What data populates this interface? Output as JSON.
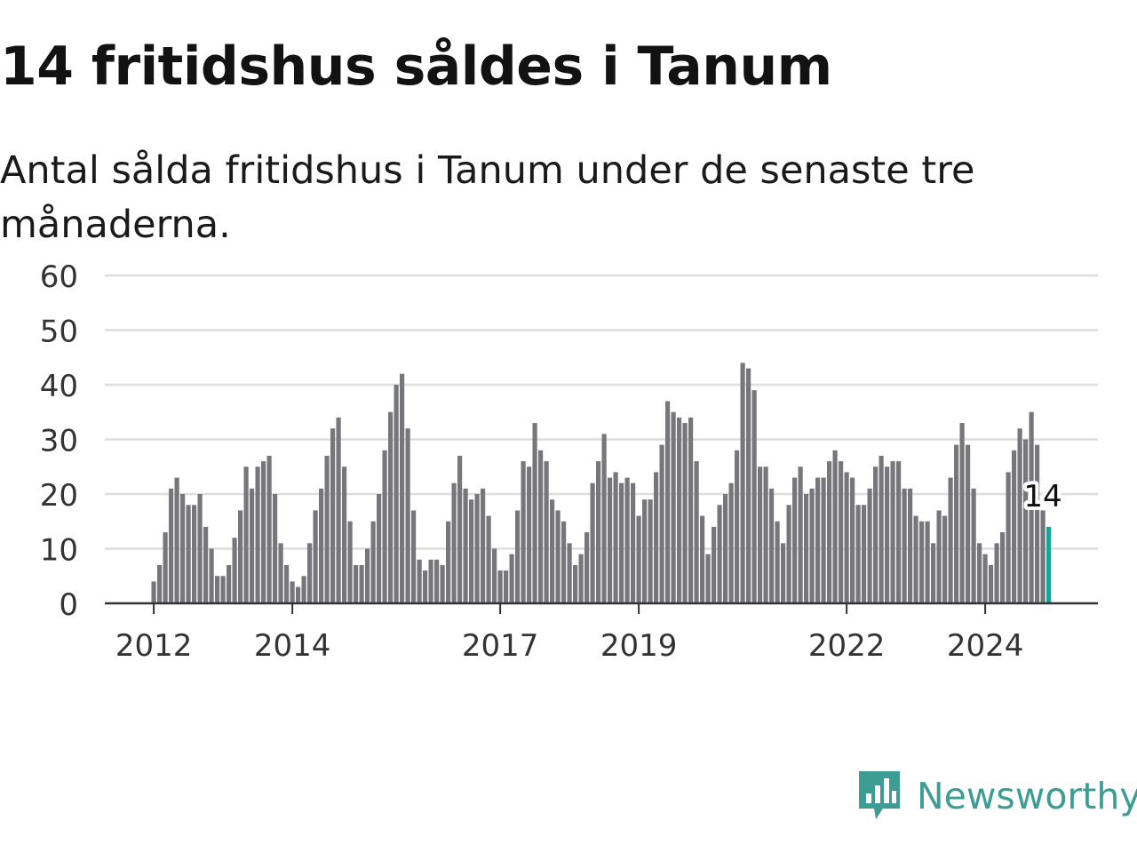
{
  "title": "14 fritidshus såldes i Tanum",
  "subtitle": "Antal sålda fritidshus i Tanum under de senaste tre månaderna.",
  "brand": {
    "name": "Newsworthy",
    "icon": "newsworthy-logo-icon",
    "color": "#3d9c93"
  },
  "colors": {
    "bar": "#76767b",
    "highlight": "#19a39a",
    "grid": "#dedede",
    "axis": "#333333"
  },
  "chart_data": {
    "type": "bar",
    "y_ticks": [
      0,
      10,
      20,
      30,
      40,
      50,
      60
    ],
    "ylim": [
      0,
      60
    ],
    "x_tick_labels": [
      "2012",
      "2014",
      "2017",
      "2019",
      "2022",
      "2024"
    ],
    "x_tick_months": [
      0,
      24,
      60,
      84,
      120,
      144
    ],
    "months_before_start": 0,
    "values": [
      4,
      7,
      13,
      21,
      23,
      20,
      18,
      18,
      20,
      14,
      10,
      5,
      5,
      7,
      12,
      17,
      25,
      21,
      25,
      26,
      27,
      20,
      11,
      7,
      4,
      3,
      5,
      11,
      17,
      21,
      27,
      32,
      34,
      25,
      15,
      7,
      7,
      10,
      15,
      20,
      28,
      35,
      40,
      42,
      32,
      17,
      8,
      6,
      8,
      8,
      7,
      15,
      22,
      27,
      21,
      19,
      20,
      21,
      16,
      10,
      6,
      6,
      9,
      17,
      26,
      25,
      33,
      28,
      26,
      19,
      17,
      15,
      11,
      7,
      9,
      13,
      22,
      26,
      31,
      23,
      24,
      22,
      23,
      22,
      16,
      19,
      19,
      24,
      29,
      37,
      35,
      34,
      33,
      34,
      26,
      16,
      9,
      14,
      18,
      20,
      22,
      28,
      44,
      43,
      39,
      25,
      25,
      21,
      15,
      11,
      18,
      23,
      25,
      20,
      21,
      23,
      23,
      26,
      28,
      26,
      24,
      23,
      18,
      18,
      21,
      25,
      27,
      25,
      26,
      26,
      21,
      21,
      16,
      15,
      15,
      11,
      17,
      16,
      23,
      29,
      33,
      29,
      21,
      11,
      9,
      7,
      11,
      13,
      24,
      28,
      32,
      30,
      35,
      29,
      17,
      14
    ],
    "highlight_last": true,
    "last_label": "14"
  }
}
